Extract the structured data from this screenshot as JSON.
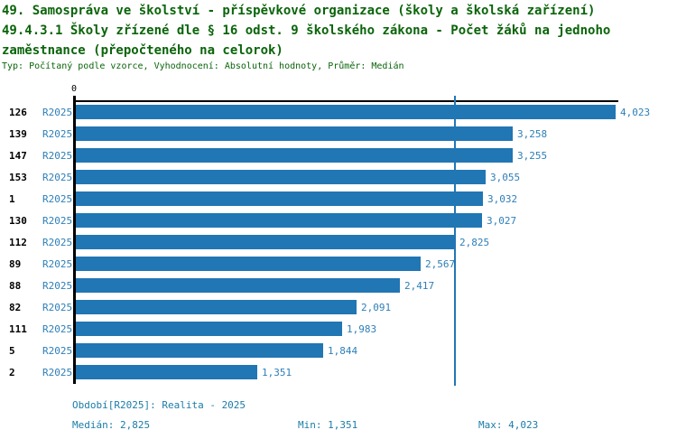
{
  "header": {
    "title_line1": "49. Samospráva ve školství - příspěvkové organizace (školy a školská zařízení)",
    "title_line2": "49.4.3.1 Školy zřízené dle § 16 odst. 9 školského zákona - Počet žáků na jednoho",
    "title_line3": "zaměstnance (přepočteného na celorok)",
    "subtitle": "Typ: Počítaný podle vzorce, Vyhodnocení: Absolutní hodnoty, Průměr: Medián"
  },
  "chart_data": {
    "type": "bar",
    "orientation": "horizontal",
    "title": "Počet žáků na jednoho zaměstnance (přepočteného na celorok)",
    "x_axis": {
      "origin_tick_label": "0",
      "min": 0,
      "max": 4.023,
      "grid": false
    },
    "median_reference_line": 2.825,
    "series_name": "R2025",
    "rows": [
      {
        "category": "126",
        "period": "R2025",
        "value": 4.023,
        "value_label": "4,023"
      },
      {
        "category": "139",
        "period": "R2025",
        "value": 3.258,
        "value_label": "3,258"
      },
      {
        "category": "147",
        "period": "R2025",
        "value": 3.255,
        "value_label": "3,255"
      },
      {
        "category": "153",
        "period": "R2025",
        "value": 3.055,
        "value_label": "3,055"
      },
      {
        "category": "1",
        "period": "R2025",
        "value": 3.032,
        "value_label": "3,032"
      },
      {
        "category": "130",
        "period": "R2025",
        "value": 3.027,
        "value_label": "3,027"
      },
      {
        "category": "112",
        "period": "R2025",
        "value": 2.825,
        "value_label": "2,825"
      },
      {
        "category": "89",
        "period": "R2025",
        "value": 2.567,
        "value_label": "2,567"
      },
      {
        "category": "88",
        "period": "R2025",
        "value": 2.417,
        "value_label": "2,417"
      },
      {
        "category": "82",
        "period": "R2025",
        "value": 2.091,
        "value_label": "2,091"
      },
      {
        "category": "111",
        "period": "R2025",
        "value": 1.983,
        "value_label": "1,983"
      },
      {
        "category": "5",
        "period": "R2025",
        "value": 1.844,
        "value_label": "1,844"
      },
      {
        "category": "2",
        "period": "R2025",
        "value": 1.351,
        "value_label": "1,351"
      }
    ]
  },
  "footer": {
    "period_note": "Období[R2025]: Realita - 2025",
    "median_label": "Medián: 2,825",
    "min_label": "Min: 1,351",
    "max_label": "Max: 4,023"
  },
  "colors": {
    "title_text": "#0a640a",
    "bar_fill": "#2176b4",
    "blue_label_text": "#2d7fb8",
    "median_line": "#2176b4",
    "footer_text": "#1a7ca8",
    "axis": "#000000"
  }
}
